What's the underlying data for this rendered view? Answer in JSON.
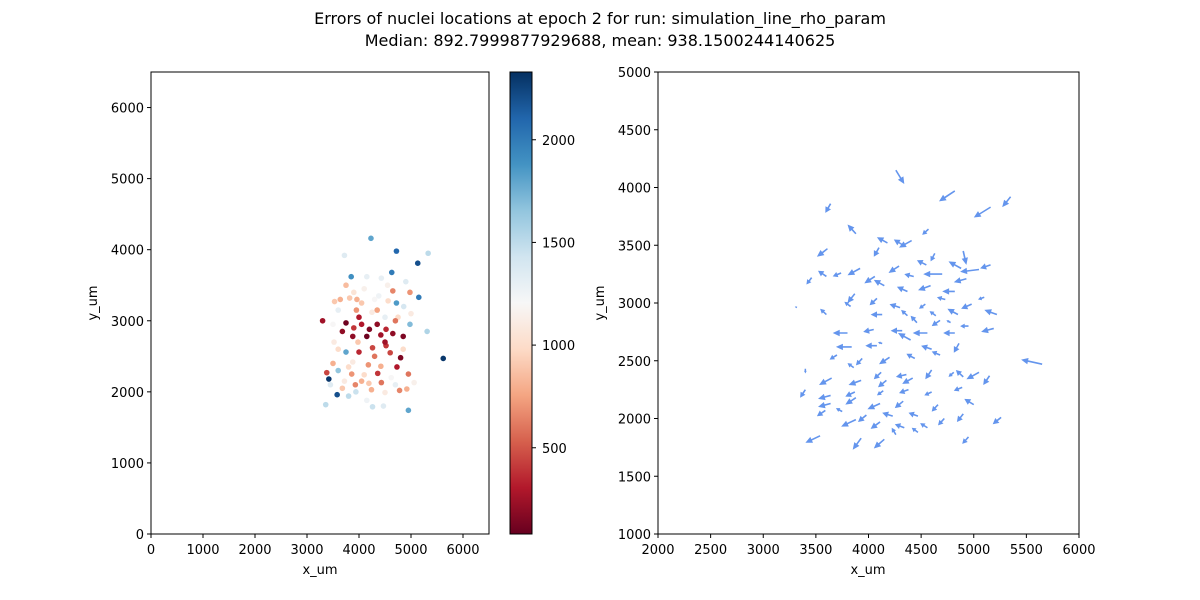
{
  "title_line1": "Errors of nuclei locations at epoch 2 for run: simulation_line_rho_param",
  "title_line2": "Median: 892.7999877929688, mean: 938.1500244140625",
  "chart_data": [
    {
      "type": "scatter",
      "xlabel": "x_um",
      "ylabel": "y_um",
      "xlim": [
        0,
        6500
      ],
      "ylim": [
        0,
        6500
      ],
      "xticks": [
        0,
        1000,
        2000,
        3000,
        4000,
        5000,
        6000
      ],
      "yticks": [
        0,
        1000,
        2000,
        3000,
        4000,
        5000,
        6000
      ],
      "colorbar": {
        "cmap": "RdBu",
        "range": [
          80,
          2330
        ],
        "ticks": [
          500,
          1000,
          1500,
          2000
        ]
      },
      "points": [
        [
          4230,
          4160,
          1800
        ],
        [
          4720,
          3980,
          2100
        ],
        [
          5330,
          3950,
          1500
        ],
        [
          3720,
          3920,
          1350
        ],
        [
          5130,
          3810,
          2200
        ],
        [
          3850,
          3620,
          1900
        ],
        [
          4150,
          3620,
          1300
        ],
        [
          4430,
          3600,
          1300
        ],
        [
          4630,
          3680,
          2000
        ],
        [
          4900,
          3550,
          1350
        ],
        [
          4980,
          3400,
          700
        ],
        [
          3640,
          3300,
          800
        ],
        [
          3820,
          3320,
          900
        ],
        [
          4100,
          3450,
          1150
        ],
        [
          3530,
          3270,
          900
        ],
        [
          3960,
          3300,
          800
        ],
        [
          4380,
          3350,
          1250
        ],
        [
          4560,
          3280,
          1000
        ],
        [
          4720,
          3250,
          1850
        ],
        [
          4860,
          3200,
          1400
        ],
        [
          5150,
          3330,
          2000
        ],
        [
          3600,
          3150,
          1300
        ],
        [
          3950,
          3150,
          700
        ],
        [
          4250,
          3120,
          1100
        ],
        [
          4500,
          3050,
          1300
        ],
        [
          4750,
          3050,
          1000
        ],
        [
          5000,
          3100,
          1100
        ],
        [
          3300,
          3000,
          250
        ],
        [
          3500,
          2950,
          1200
        ],
        [
          3750,
          2970,
          100
        ],
        [
          3900,
          2900,
          400
        ],
        [
          4050,
          2950,
          300
        ],
        [
          4200,
          2880,
          150
        ],
        [
          4350,
          2950,
          200
        ],
        [
          4520,
          2880,
          350
        ],
        [
          4700,
          3000,
          600
        ],
        [
          4980,
          2950,
          1700
        ],
        [
          5310,
          2850,
          1550
        ],
        [
          3680,
          2850,
          200
        ],
        [
          3880,
          2780,
          200
        ],
        [
          4150,
          2780,
          100
        ],
        [
          4420,
          2800,
          250
        ],
        [
          4650,
          2820,
          200
        ],
        [
          4850,
          2780,
          150
        ],
        [
          3520,
          2700,
          1100
        ],
        [
          3980,
          2700,
          900
        ],
        [
          4260,
          2620,
          450
        ],
        [
          4520,
          2650,
          400
        ],
        [
          3600,
          2600,
          1000
        ],
        [
          3750,
          2560,
          1800
        ],
        [
          4000,
          2560,
          350
        ],
        [
          4300,
          2500,
          600
        ],
        [
          4600,
          2550,
          450
        ],
        [
          4800,
          2480,
          150
        ],
        [
          5620,
          2470,
          2300
        ],
        [
          3500,
          2400,
          800
        ],
        [
          3880,
          2420,
          1100
        ],
        [
          4180,
          2380,
          700
        ],
        [
          4420,
          2360,
          800
        ],
        [
          4730,
          2350,
          300
        ],
        [
          3380,
          2270,
          450
        ],
        [
          3600,
          2300,
          1650
        ],
        [
          3860,
          2250,
          700
        ],
        [
          4100,
          2240,
          1000
        ],
        [
          4360,
          2260,
          400
        ],
        [
          4620,
          2200,
          1200
        ],
        [
          4950,
          2250,
          600
        ],
        [
          3420,
          2180,
          2300
        ],
        [
          3720,
          2150,
          1100
        ],
        [
          3930,
          2100,
          650
        ],
        [
          4190,
          2120,
          900
        ],
        [
          4430,
          2130,
          600
        ],
        [
          4700,
          2100,
          1300
        ],
        [
          5060,
          2130,
          1150
        ],
        [
          3680,
          2050,
          900
        ],
        [
          3940,
          2000,
          1450
        ],
        [
          4240,
          2030,
          800
        ],
        [
          4500,
          1990,
          1100
        ],
        [
          4780,
          2020,
          650
        ],
        [
          3580,
          1960,
          2200
        ],
        [
          3800,
          1940,
          1500
        ],
        [
          4150,
          1880,
          1250
        ],
        [
          4260,
          1790,
          1450
        ],
        [
          4470,
          1800,
          1350
        ],
        [
          4950,
          1740,
          1800
        ],
        [
          3360,
          1820,
          1500
        ],
        [
          4920,
          2040,
          800
        ],
        [
          3900,
          3400,
          1050
        ],
        [
          4050,
          3250,
          900
        ],
        [
          4300,
          3300,
          1200
        ],
        [
          4650,
          3420,
          650
        ],
        [
          3750,
          3500,
          850
        ],
        [
          4000,
          3050,
          300
        ],
        [
          4500,
          2700,
          250
        ],
        [
          3800,
          2350,
          1000
        ],
        [
          4050,
          2150,
          800
        ],
        [
          3450,
          2100,
          1350
        ],
        [
          4850,
          2600,
          1000
        ],
        [
          4350,
          3150,
          750
        ],
        [
          4550,
          3500,
          1150
        ]
      ]
    },
    {
      "type": "quiver",
      "xlabel": "x_um",
      "ylabel": "y_um",
      "xlim": [
        2000,
        6000
      ],
      "ylim": [
        1000,
        5000
      ],
      "xticks": [
        2000,
        2500,
        3000,
        3500,
        4000,
        4500,
        5000,
        5500,
        6000
      ],
      "yticks": [
        1000,
        1500,
        2000,
        2500,
        3000,
        3500,
        4000,
        4500,
        5000
      ],
      "arrow_color": "#6495ed",
      "arrows": [
        [
          4260,
          4150,
          80,
          -120
        ],
        [
          4820,
          3970,
          -150,
          -90
        ],
        [
          5350,
          3920,
          -80,
          -90
        ],
        [
          3640,
          3860,
          -50,
          -80
        ],
        [
          5160,
          3830,
          -160,
          -90
        ],
        [
          4410,
          3540,
          -120,
          -60
        ],
        [
          4330,
          3500,
          -90,
          50
        ],
        [
          4570,
          3640,
          -60,
          -50
        ],
        [
          3610,
          3470,
          -100,
          -70
        ],
        [
          4630,
          3430,
          -40,
          -70
        ],
        [
          4100,
          3480,
          -50,
          -80
        ],
        [
          4900,
          3450,
          30,
          -120
        ],
        [
          3880,
          3600,
          -80,
          80
        ],
        [
          4180,
          3520,
          -100,
          50
        ],
        [
          3920,
          3300,
          -120,
          -60
        ],
        [
          4290,
          3320,
          -100,
          -60
        ],
        [
          4550,
          3330,
          -90,
          40
        ],
        [
          4880,
          3300,
          -120,
          60
        ],
        [
          5050,
          3290,
          -180,
          -20
        ],
        [
          3460,
          3220,
          -50,
          -60
        ],
        [
          3740,
          3260,
          -80,
          -30
        ],
        [
          4060,
          3230,
          -100,
          -60
        ],
        [
          4430,
          3230,
          -90,
          20
        ],
        [
          4700,
          3250,
          -180,
          0
        ],
        [
          4930,
          3210,
          -120,
          -30
        ],
        [
          5160,
          3330,
          -100,
          -30
        ],
        [
          3600,
          3230,
          -80,
          50
        ],
        [
          4150,
          3150,
          -100,
          50
        ],
        [
          4370,
          3100,
          -100,
          40
        ],
        [
          4590,
          3150,
          -120,
          -40
        ],
        [
          4820,
          3100,
          -120,
          0
        ],
        [
          3870,
          3080,
          -70,
          -80
        ],
        [
          4080,
          3040,
          -70,
          -60
        ],
        [
          4300,
          2960,
          -100,
          30
        ],
        [
          4540,
          2990,
          -60,
          -40
        ],
        [
          4730,
          3030,
          -80,
          20
        ],
        [
          4980,
          2990,
          -100,
          -40
        ],
        [
          5220,
          2900,
          -120,
          40
        ],
        [
          3600,
          2900,
          -60,
          50
        ],
        [
          3830,
          2970,
          -60,
          40
        ],
        [
          4130,
          2900,
          -110,
          0
        ],
        [
          4370,
          2890,
          -60,
          50
        ],
        [
          4640,
          2890,
          -60,
          40
        ],
        [
          4850,
          2900,
          -100,
          50
        ],
        [
          3800,
          2740,
          -140,
          0
        ],
        [
          4050,
          2770,
          -100,
          -20
        ],
        [
          4320,
          2760,
          -110,
          0
        ],
        [
          4560,
          2740,
          -140,
          0
        ],
        [
          4820,
          2740,
          -110,
          0
        ],
        [
          5190,
          2780,
          -120,
          -30
        ],
        [
          4680,
          2850,
          -80,
          -50
        ],
        [
          4400,
          2680,
          -120,
          60
        ],
        [
          3840,
          2620,
          -150,
          0
        ],
        [
          4080,
          2630,
          -110,
          0
        ],
        [
          4600,
          2600,
          -100,
          30
        ],
        [
          4860,
          2650,
          -50,
          -80
        ],
        [
          5650,
          2470,
          -200,
          40
        ],
        [
          3700,
          2550,
          -70,
          -40
        ],
        [
          3940,
          2520,
          -60,
          -60
        ],
        [
          4200,
          2530,
          -100,
          -60
        ],
        [
          4440,
          2520,
          -80,
          40
        ],
        [
          4680,
          2550,
          -80,
          30
        ],
        [
          3860,
          2440,
          -60,
          40
        ],
        [
          4120,
          2400,
          -70,
          -60
        ],
        [
          4360,
          2380,
          -100,
          -20
        ],
        [
          4600,
          2420,
          -60,
          -80
        ],
        [
          5150,
          2370,
          -60,
          -80
        ],
        [
          3650,
          2350,
          -120,
          -60
        ],
        [
          3930,
          2330,
          -120,
          -40
        ],
        [
          4170,
          2330,
          -80,
          -60
        ],
        [
          4420,
          2350,
          -100,
          -50
        ],
        [
          4810,
          2400,
          -50,
          -40
        ],
        [
          5050,
          2400,
          -120,
          -60
        ],
        [
          3640,
          2200,
          -120,
          -30
        ],
        [
          3870,
          2230,
          -90,
          -40
        ],
        [
          4140,
          2240,
          -60,
          -40
        ],
        [
          4380,
          2250,
          -90,
          -30
        ],
        [
          4600,
          2230,
          -70,
          -30
        ],
        [
          4890,
          2270,
          -80,
          -30
        ],
        [
          3640,
          2130,
          -120,
          -30
        ],
        [
          3880,
          2180,
          -100,
          -60
        ],
        [
          4110,
          2130,
          -120,
          -50
        ],
        [
          4330,
          2150,
          -80,
          -60
        ],
        [
          4660,
          2120,
          -60,
          -60
        ],
        [
          5000,
          2120,
          -90,
          50
        ],
        [
          3750,
          2060,
          -60,
          30
        ],
        [
          3980,
          2030,
          -80,
          -60
        ],
        [
          4230,
          2020,
          -100,
          30
        ],
        [
          4470,
          2020,
          -90,
          30
        ],
        [
          4720,
          2000,
          -60,
          -60
        ],
        [
          3590,
          2070,
          -80,
          -50
        ],
        [
          3880,
          1990,
          -140,
          -60
        ],
        [
          4110,
          1970,
          -90,
          -60
        ],
        [
          4340,
          1920,
          -90,
          30
        ],
        [
          4560,
          1920,
          -70,
          40
        ],
        [
          4900,
          2040,
          -60,
          -70
        ],
        [
          3540,
          1850,
          -140,
          -60
        ],
        [
          3930,
          1830,
          -80,
          -100
        ],
        [
          4150,
          1820,
          -100,
          -80
        ],
        [
          4260,
          1860,
          -40,
          60
        ],
        [
          4470,
          1880,
          -60,
          40
        ],
        [
          4950,
          1840,
          -60,
          -60
        ],
        [
          4900,
          2360,
          -70,
          60
        ],
        [
          3400,
          2250,
          -50,
          -70
        ],
        [
          5260,
          2010,
          -80,
          -60
        ],
        [
          4460,
          2830,
          -60,
          60
        ],
        [
          3400,
          2430,
          0,
          -40
        ],
        [
          5100,
          3050,
          -60,
          -20
        ],
        [
          4950,
          2800,
          -80,
          0
        ],
        [
          3320,
          2960,
          -20,
          10
        ],
        [
          4780,
          2830,
          -40,
          20
        ],
        [
          4130,
          2650,
          -40,
          10
        ]
      ]
    }
  ]
}
